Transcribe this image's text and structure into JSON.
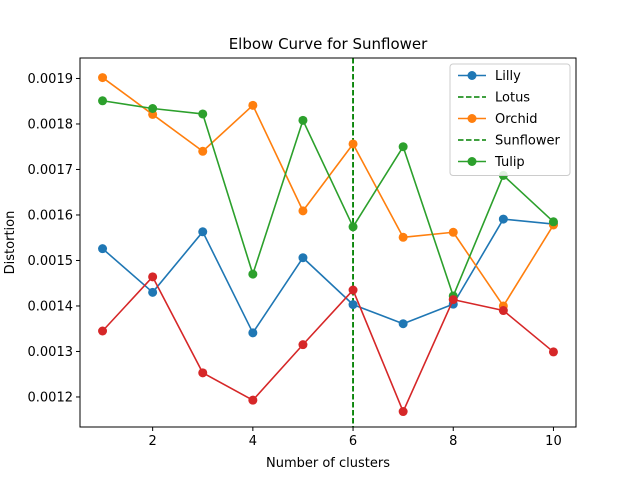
{
  "chart_data": {
    "type": "line",
    "title": "Elbow Curve for Sunflower",
    "xlabel": "Number of clusters",
    "ylabel": "Distortion",
    "xlim": [
      0.55,
      10.45
    ],
    "ylim": [
      0.001134,
      0.001945
    ],
    "xticks": [
      2,
      4,
      6,
      8,
      10
    ],
    "yticks": [
      0.0012,
      0.0013,
      0.0014,
      0.0015,
      0.0016,
      0.0017,
      0.0018,
      0.0019
    ],
    "ytick_labels": [
      "0.0012",
      "0.0013",
      "0.0014",
      "0.0015",
      "0.0016",
      "0.0017",
      "0.0018",
      "0.0019"
    ],
    "grid": false,
    "legend_position": "top-right",
    "x": [
      1,
      2,
      3,
      4,
      5,
      6,
      7,
      8,
      9,
      10
    ],
    "series": [
      {
        "name": "Lilly",
        "color": "#1f77b4",
        "values": [
          0.001526,
          0.00143,
          0.001563,
          0.001341,
          0.001506,
          0.001403,
          0.001361,
          0.001404,
          0.001591,
          0.00158
        ]
      },
      {
        "name": "Orchid",
        "color": "#ff7f0e",
        "values": [
          0.001902,
          0.001821,
          0.00174,
          0.001841,
          0.001609,
          0.001756,
          0.001551,
          0.001562,
          0.0014,
          0.001578
        ]
      },
      {
        "name": "Tulip",
        "color": "#2ca02c",
        "values": [
          0.001851,
          0.001834,
          0.001822,
          0.00147,
          0.001808,
          0.001574,
          0.00175,
          0.001422,
          0.001687,
          0.001585
        ]
      },
      {
        "name": "",
        "color": "#d62728",
        "values": [
          0.001345,
          0.001464,
          0.001253,
          0.001193,
          0.001315,
          0.001435,
          0.001168,
          0.001414,
          0.00139,
          0.001299
        ]
      }
    ],
    "vlines": [
      {
        "name": "Lotus",
        "x": 6,
        "color": "#008000"
      },
      {
        "name": "Sunflower",
        "x": 6,
        "color": "#008000"
      }
    ],
    "legend": [
      {
        "label": "Lilly",
        "kind": "line-marker",
        "color": "#1f77b4"
      },
      {
        "label": "Lotus",
        "kind": "dashed",
        "color": "#008000"
      },
      {
        "label": "Orchid",
        "kind": "line-marker",
        "color": "#ff7f0e"
      },
      {
        "label": "Sunflower",
        "kind": "dashed",
        "color": "#008000"
      },
      {
        "label": "Tulip",
        "kind": "line-marker",
        "color": "#2ca02c"
      }
    ]
  }
}
